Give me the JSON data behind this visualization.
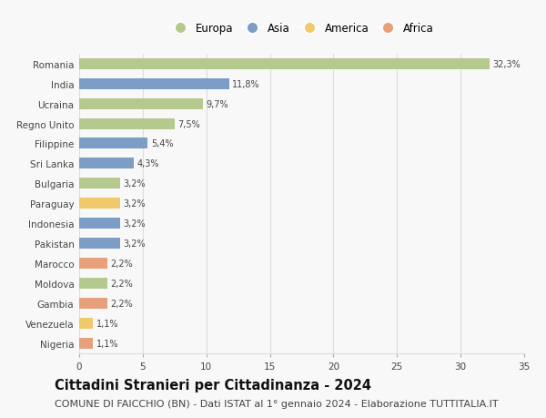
{
  "categories": [
    "Romania",
    "India",
    "Ucraina",
    "Regno Unito",
    "Filippine",
    "Sri Lanka",
    "Bulgaria",
    "Paraguay",
    "Indonesia",
    "Pakistan",
    "Marocco",
    "Moldova",
    "Gambia",
    "Venezuela",
    "Nigeria"
  ],
  "values": [
    32.3,
    11.8,
    9.7,
    7.5,
    5.4,
    4.3,
    3.2,
    3.2,
    3.2,
    3.2,
    2.2,
    2.2,
    2.2,
    1.1,
    1.1
  ],
  "labels": [
    "32,3%",
    "11,8%",
    "9,7%",
    "7,5%",
    "5,4%",
    "4,3%",
    "3,2%",
    "3,2%",
    "3,2%",
    "3,2%",
    "2,2%",
    "2,2%",
    "2,2%",
    "1,1%",
    "1,1%"
  ],
  "continents": [
    "Europa",
    "Asia",
    "Europa",
    "Europa",
    "Asia",
    "Asia",
    "Europa",
    "America",
    "Asia",
    "Asia",
    "Africa",
    "Europa",
    "Africa",
    "America",
    "Africa"
  ],
  "continent_colors": {
    "Europa": "#b5c98e",
    "Asia": "#7b9dc6",
    "America": "#f0c96b",
    "Africa": "#e8a07a"
  },
  "legend_order": [
    "Europa",
    "Asia",
    "America",
    "Africa"
  ],
  "title": "Cittadini Stranieri per Cittadinanza - 2024",
  "subtitle": "COMUNE DI FAICCHIO (BN) - Dati ISTAT al 1° gennaio 2024 - Elaborazione TUTTITALIA.IT",
  "xlim": [
    0,
    35
  ],
  "xticks": [
    0,
    5,
    10,
    15,
    20,
    25,
    30,
    35
  ],
  "background_color": "#f8f8f8",
  "grid_color": "#dddddd",
  "bar_height": 0.55,
  "title_fontsize": 10.5,
  "subtitle_fontsize": 8,
  "label_fontsize": 7,
  "tick_fontsize": 7.5,
  "legend_fontsize": 8.5
}
